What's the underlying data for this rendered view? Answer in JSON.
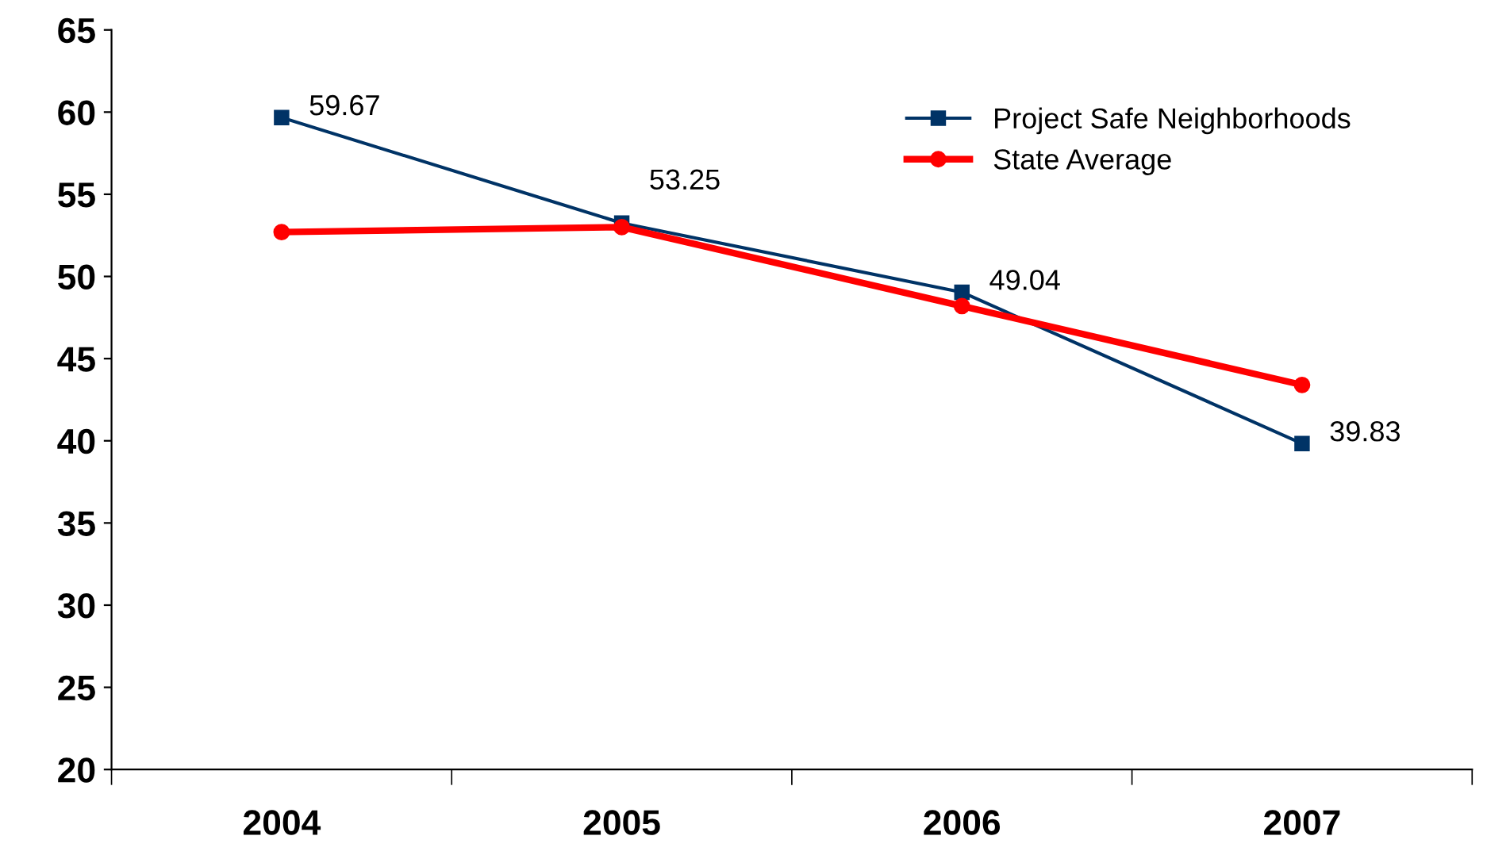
{
  "chart_data": {
    "type": "line",
    "categories": [
      "2004",
      "2005",
      "2006",
      "2007"
    ],
    "series": [
      {
        "name": "Project Safe Neighborhoods",
        "color": "#003366",
        "values": [
          59.67,
          53.25,
          49.04,
          39.83
        ],
        "value_labels": [
          "59.67",
          "53.25",
          "49.04",
          "39.83"
        ],
        "marker": "square"
      },
      {
        "name": "State Average",
        "color": "#ff0000",
        "values": [
          52.7,
          53.0,
          48.2,
          43.4
        ],
        "marker": "circle"
      }
    ],
    "ylim": [
      20,
      65
    ],
    "yticks": [
      20,
      25,
      30,
      35,
      40,
      45,
      50,
      55,
      60,
      65
    ],
    "grid": false,
    "legend": "top right",
    "line_style": "solid"
  }
}
